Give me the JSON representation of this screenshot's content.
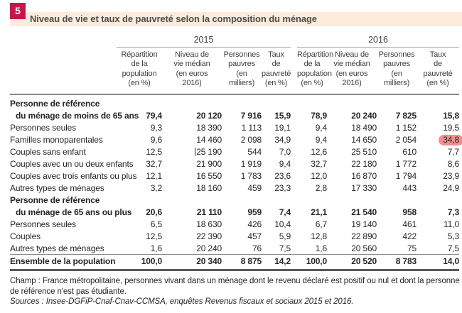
{
  "figure": {
    "number": "5",
    "title": "Niveau de vie et taux de pauvreté selon la composition du ménage"
  },
  "colors": {
    "badge_red": "#c5174e",
    "banner_peach": "#fdecdc",
    "highlight_salmon": "#f18f8f",
    "title_text": "#4c4c4c",
    "rule_gray": "#868686"
  },
  "table": {
    "year_groups": [
      "2015",
      "2016"
    ],
    "column_headers": [
      "Répartition\nde la\npopulation\n(en %)",
      "Niveau de\nvie médian\n(en euros\n2016)",
      "Personnes\npauvres\n(en\nmilliers)",
      "Taux\nde\npauvreté\n(en %)"
    ],
    "rows": [
      {
        "label": "Personne de référence",
        "bold": true,
        "values": [
          "",
          "",
          "",
          "",
          "",
          "",
          "",
          ""
        ]
      },
      {
        "label": "du ménage de moins de 65 ans",
        "bold": true,
        "indent": true,
        "values": [
          "79,4",
          "20 120",
          "7 916",
          "15,9",
          "78,9",
          "20 240",
          "7 825",
          "15,8"
        ]
      },
      {
        "label": "Personnes seules",
        "values": [
          "9,3",
          "18 390",
          "1 113",
          "19,1",
          "9,4",
          "18 490",
          "1 152",
          "19,5"
        ]
      },
      {
        "label": "Familles monoparentales",
        "highlight_col": 7,
        "values": [
          "9,6",
          "14 460",
          "2 098",
          "34,9",
          "9,4",
          "14 650",
          "2 054",
          "34,8"
        ]
      },
      {
        "label": "Couples sans enfant",
        "caret_col": 1,
        "values": [
          "12,5",
          "25 190",
          "544",
          "7,0",
          "12,6",
          "25 510",
          "610",
          "7,7"
        ]
      },
      {
        "label": "Couples avec un ou deux enfants",
        "values": [
          "32,7",
          "21 900",
          "1 919",
          "9,4",
          "32,7",
          "22 180",
          "1 772",
          "8,6"
        ]
      },
      {
        "label": "Couples avec trois enfants ou plus",
        "values": [
          "12,1",
          "16 550",
          "1 783",
          "23,6",
          "12,0",
          "16 870",
          "1 794",
          "23,9"
        ]
      },
      {
        "label": "Autres types de ménages",
        "values": [
          "3,2",
          "18 160",
          "459",
          "23,3",
          "2,8",
          "17 330",
          "443",
          "24,9"
        ]
      },
      {
        "label": "Personne de référence",
        "bold": true,
        "values": [
          "",
          "",
          "",
          "",
          "",
          "",
          "",
          ""
        ]
      },
      {
        "label": "du ménage de 65 ans ou plus",
        "bold": true,
        "indent": true,
        "values": [
          "20,6",
          "21 110",
          "959",
          "7,4",
          "21,1",
          "21 540",
          "958",
          "7,3"
        ]
      },
      {
        "label": "Personnes seules",
        "values": [
          "6,5",
          "18 630",
          "426",
          "10,4",
          "6,7",
          "19 140",
          "461",
          "11,0"
        ]
      },
      {
        "label": "Couples",
        "values": [
          "12,5",
          "22 390",
          "457",
          "5,9",
          "12,8",
          "22 890",
          "422",
          "5,3"
        ]
      },
      {
        "label": "Autres types de ménages",
        "values": [
          "1,6",
          "20 240",
          "76",
          "7,5",
          "1,6",
          "20 560",
          "75",
          "7,5"
        ]
      },
      {
        "label": "Ensemble de la population",
        "bold": true,
        "total": true,
        "values": [
          "100,0",
          "20 340",
          "8 875",
          "14,2",
          "100,0",
          "20 520",
          "8 783",
          "14,0"
        ]
      }
    ]
  },
  "notes": {
    "champ": "Champ : France métropolitaine, personnes vivant dans un ménage dont le revenu déclaré est positif ou nul et dont la personne de référence n'est pas étudiante.",
    "sources": "Sources : Insee-DGFiP-Cnaf-Cnav-CCMSA, enquêtes Revenus fiscaux et sociaux 2015 et 2016."
  }
}
